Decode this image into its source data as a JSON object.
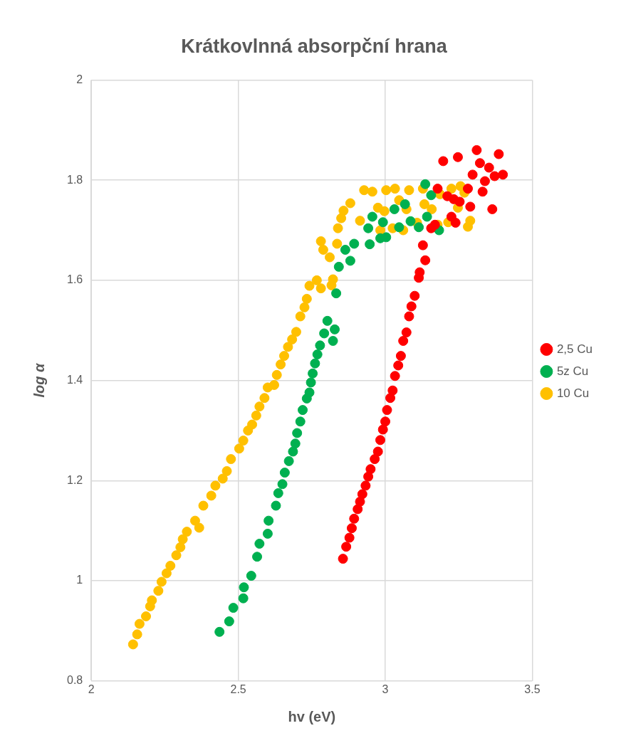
{
  "chart_data": {
    "type": "scatter",
    "title": "Krátkovlnná absorpční hrana",
    "xlabel": "hv (eV)",
    "ylabel": "log α",
    "xlim": [
      2,
      3.5
    ],
    "xticks": [
      2,
      2.5,
      3,
      3.5
    ],
    "ylim": [
      0.8,
      2
    ],
    "yticks": [
      0.8,
      1,
      1.2,
      1.4,
      1.6,
      1.8,
      2
    ],
    "grid": true,
    "legend": "right",
    "marker": "circle",
    "series": [
      {
        "name": "2,5 Cu",
        "color": "#ff0000",
        "x": [
          2.856,
          2.867,
          2.878,
          2.886,
          2.894,
          2.906,
          2.914,
          2.922,
          2.933,
          2.942,
          2.95,
          2.964,
          2.975,
          2.983,
          2.992,
          3.0,
          3.006,
          3.017,
          3.025,
          3.033,
          3.044,
          3.053,
          3.061,
          3.072,
          3.081,
          3.089,
          3.1,
          3.114,
          3.117,
          3.136,
          3.128,
          3.156,
          3.169,
          3.178,
          3.211,
          3.233,
          3.253,
          3.225,
          3.239,
          3.281,
          3.289,
          3.197,
          3.247,
          3.311,
          3.386,
          3.322,
          3.353,
          3.297,
          3.339,
          3.4,
          3.372,
          3.331,
          3.364
        ],
        "values": [
          1.044,
          1.068,
          1.086,
          1.105,
          1.124,
          1.143,
          1.158,
          1.173,
          1.19,
          1.208,
          1.223,
          1.243,
          1.258,
          1.281,
          1.302,
          1.318,
          1.341,
          1.365,
          1.38,
          1.409,
          1.43,
          1.449,
          1.479,
          1.496,
          1.528,
          1.548,
          1.569,
          1.605,
          1.616,
          1.64,
          1.67,
          1.704,
          1.711,
          1.783,
          1.768,
          1.762,
          1.757,
          1.727,
          1.715,
          1.783,
          1.747,
          1.838,
          1.846,
          1.86,
          1.852,
          1.834,
          1.825,
          1.811,
          1.798,
          1.811,
          1.808,
          1.777,
          1.742
        ]
      },
      {
        "name": "5z Cu",
        "color": "#00b050",
        "x": [
          2.436,
          2.469,
          2.483,
          2.517,
          2.519,
          2.544,
          2.564,
          2.572,
          2.6,
          2.603,
          2.628,
          2.636,
          2.65,
          2.658,
          2.672,
          2.686,
          2.694,
          2.7,
          2.711,
          2.719,
          2.733,
          2.742,
          2.747,
          2.753,
          2.761,
          2.769,
          2.778,
          2.792,
          2.803,
          2.828,
          2.822,
          2.833,
          2.842,
          2.881,
          2.864,
          2.894,
          2.947,
          2.942,
          2.956,
          2.983,
          3.003,
          2.992,
          3.031,
          3.047,
          3.067,
          3.086,
          3.114,
          3.142,
          3.136,
          3.156,
          3.183
        ],
        "values": [
          0.898,
          0.919,
          0.946,
          0.965,
          0.987,
          1.01,
          1.048,
          1.074,
          1.094,
          1.12,
          1.15,
          1.175,
          1.193,
          1.216,
          1.239,
          1.258,
          1.274,
          1.295,
          1.318,
          1.341,
          1.364,
          1.376,
          1.396,
          1.414,
          1.434,
          1.452,
          1.47,
          1.494,
          1.519,
          1.502,
          1.479,
          1.574,
          1.627,
          1.639,
          1.661,
          1.673,
          1.672,
          1.704,
          1.727,
          1.684,
          1.686,
          1.716,
          1.742,
          1.706,
          1.752,
          1.718,
          1.706,
          1.727,
          1.792,
          1.77,
          1.7
        ]
      },
      {
        "name": "10 Cu",
        "color": "#ffc000",
        "x": [
          2.142,
          2.156,
          2.164,
          2.186,
          2.2,
          2.206,
          2.228,
          2.239,
          2.256,
          2.269,
          2.289,
          2.303,
          2.311,
          2.325,
          2.353,
          2.367,
          2.381,
          2.408,
          2.422,
          2.447,
          2.461,
          2.475,
          2.503,
          2.517,
          2.533,
          2.547,
          2.561,
          2.572,
          2.589,
          2.6,
          2.622,
          2.631,
          2.644,
          2.656,
          2.669,
          2.683,
          2.697,
          2.711,
          2.725,
          2.733,
          2.742,
          2.767,
          2.781,
          2.822,
          2.817,
          2.781,
          2.789,
          2.811,
          2.836,
          2.839,
          2.85,
          2.858,
          2.881,
          2.914,
          2.928,
          2.956,
          2.983,
          2.975,
          2.997,
          3.003,
          3.033,
          3.025,
          3.061,
          3.047,
          3.072,
          3.081,
          3.108,
          3.128,
          3.133,
          3.158,
          3.178,
          3.186,
          3.214,
          3.225,
          3.247,
          3.256,
          3.269,
          3.281,
          3.289
        ],
        "values": [
          0.873,
          0.893,
          0.914,
          0.929,
          0.949,
          0.961,
          0.98,
          0.998,
          1.015,
          1.03,
          1.051,
          1.067,
          1.083,
          1.098,
          1.12,
          1.106,
          1.15,
          1.17,
          1.19,
          1.204,
          1.219,
          1.243,
          1.264,
          1.28,
          1.3,
          1.312,
          1.33,
          1.348,
          1.365,
          1.386,
          1.391,
          1.411,
          1.432,
          1.449,
          1.467,
          1.482,
          1.497,
          1.528,
          1.546,
          1.563,
          1.589,
          1.6,
          1.584,
          1.602,
          1.59,
          1.678,
          1.661,
          1.646,
          1.673,
          1.704,
          1.724,
          1.739,
          1.754,
          1.719,
          1.78,
          1.777,
          1.7,
          1.745,
          1.738,
          1.78,
          1.783,
          1.704,
          1.7,
          1.76,
          1.742,
          1.78,
          1.715,
          1.783,
          1.752,
          1.742,
          1.711,
          1.772,
          1.716,
          1.783,
          1.745,
          1.788,
          1.775,
          1.707,
          1.719
        ]
      }
    ]
  }
}
